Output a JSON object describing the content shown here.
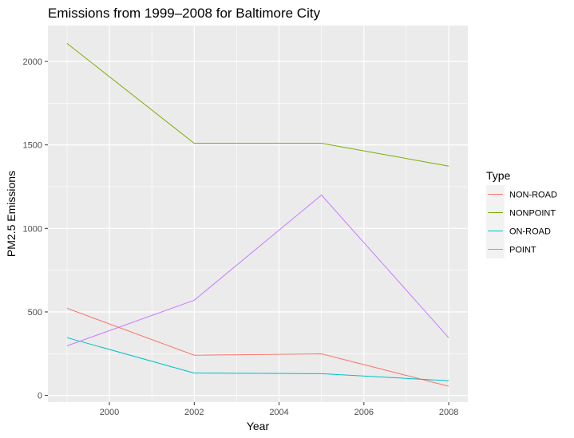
{
  "chart_data": {
    "type": "line",
    "title": "Emissions from 1999–2008 for Baltimore City",
    "xlabel": "Year",
    "ylabel": "PM2.5 Emissions",
    "xlim": [
      1998.55,
      2008.45
    ],
    "ylim": [
      -40,
      2215
    ],
    "x_major_ticks": [
      2000,
      2002,
      2004,
      2006,
      2008
    ],
    "x_minor_ticks": [
      1999,
      2001,
      2003,
      2005,
      2007
    ],
    "y_major_ticks": [
      0,
      500,
      1000,
      1500,
      2000
    ],
    "y_minor_ticks": [
      250,
      750,
      1250,
      1750
    ],
    "grid": true,
    "legend": {
      "title": "Type",
      "placement": "right"
    },
    "x": [
      1999,
      2002,
      2005,
      2008
    ],
    "series": [
      {
        "name": "NON-ROAD",
        "color": "#F8766D",
        "values": [
          522,
          241,
          249,
          55
        ]
      },
      {
        "name": "NONPOINT",
        "color": "#7CAE00",
        "values": [
          2108,
          1510,
          1510,
          1373
        ]
      },
      {
        "name": "ON-ROAD",
        "color": "#00BFC4",
        "values": [
          346,
          134,
          130,
          88
        ]
      },
      {
        "name": "POINT",
        "color": "#C77CFF",
        "values": [
          297,
          570,
          1200,
          345
        ]
      }
    ]
  }
}
